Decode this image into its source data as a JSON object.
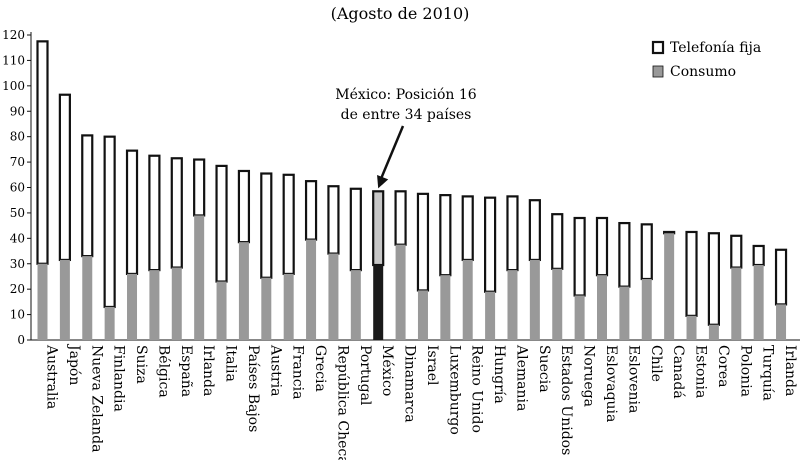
{
  "chart_data": {
    "type": "bar",
    "stacked": true,
    "subtitle": "(Agosto de 2010)",
    "categories": [
      "Australia",
      "Japón",
      "Nueva Zelanda",
      "Finlandia",
      "Suiza",
      "Bélgica",
      "España",
      "Irlanda",
      "Italia",
      "Países Bajos",
      "Austria",
      "Francia",
      "Grecia",
      "República Checa",
      "Portugal",
      "México",
      "Dinamarca",
      "Israel",
      "Luxemburgo",
      "Reino Unido",
      "Hungría",
      "Alemania",
      "Suecia",
      "Estados Unidos",
      "Noruega",
      "Eslovaquia",
      "Eslovenia",
      "Chile",
      "Canadá",
      "Estonia",
      "Corea",
      "Polonia",
      "Turquía",
      "Irlanda"
    ],
    "series": [
      {
        "name": "Consumo",
        "color": "#999999",
        "values": [
          30,
          31.5,
          33,
          13,
          26,
          27.5,
          28.5,
          49,
          23,
          38.5,
          24.5,
          26,
          39.5,
          34,
          27.5,
          29.5,
          37.5,
          19.5,
          25.5,
          31.5,
          19,
          27.5,
          31.5,
          28,
          17.5,
          25.5,
          21,
          24,
          42,
          9.5,
          6,
          28.5,
          29.5,
          14
        ]
      },
      {
        "name": "Telefonía fija",
        "color": "#ffffff",
        "values": [
          87.5,
          65,
          47.5,
          67,
          48.5,
          45,
          43,
          22,
          45.5,
          28,
          41,
          39,
          23,
          26.5,
          32,
          29,
          21,
          38,
          31.5,
          25,
          37,
          29,
          23.5,
          21.5,
          30.5,
          22.5,
          25,
          21.5,
          0.5,
          33,
          36,
          12.5,
          7.5,
          21.5
        ]
      }
    ],
    "highlight": {
      "category_index": 15,
      "color": "#1a1a1a",
      "highlight_color": "#c8c8c8"
    },
    "ylim": [
      0,
      120
    ],
    "yticks": [
      0,
      10,
      20,
      30,
      40,
      50,
      60,
      70,
      80,
      90,
      100,
      110,
      120
    ],
    "grid": false,
    "legend": {
      "position": "top-right",
      "items": [
        "Telefonía fija",
        "Consumo"
      ]
    },
    "annotation": {
      "lines": [
        "México: Posición 16",
        "de entre 34 países"
      ],
      "target_index": 15
    }
  }
}
